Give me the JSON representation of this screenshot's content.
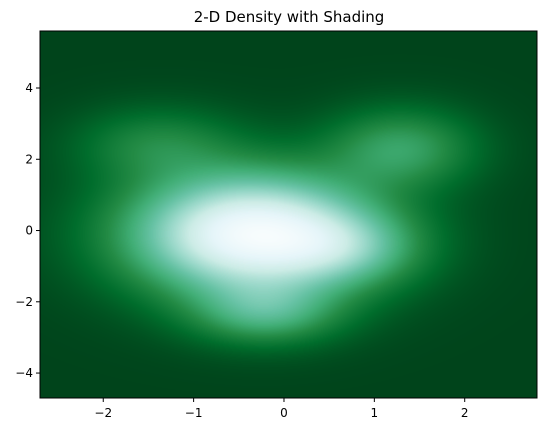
{
  "chart_data": {
    "type": "heatmap",
    "title": "2-D Density with Shading",
    "xlabel": "",
    "ylabel": "",
    "xlim": [
      -2.7,
      2.8
    ],
    "ylim": [
      -4.7,
      5.6
    ],
    "xticks": [
      -2,
      -1,
      0,
      1,
      2
    ],
    "yticks": [
      -4,
      -2,
      0,
      2,
      4
    ],
    "xtick_labels": [
      "−2",
      "−1",
      "0",
      "1",
      "2"
    ],
    "ytick_labels": [
      "−4",
      "−2",
      "0",
      "2",
      "4"
    ],
    "grid": false,
    "colormap": "BuGn_r",
    "colormap_stops": [
      "#00441b",
      "#006d2c",
      "#238b45",
      "#41ae76",
      "#66c2a4",
      "#99d8c9",
      "#ccece6",
      "#e5f5f9",
      "#f7fcfd"
    ],
    "density_components": [
      {
        "x": -0.35,
        "y": -0.1,
        "sx": 0.9,
        "sy": 1.15,
        "weight": 1.0
      },
      {
        "x": 1.3,
        "y": 2.3,
        "sx": 0.55,
        "sy": 0.75,
        "weight": 0.28
      },
      {
        "x": -1.4,
        "y": 2.4,
        "sx": 0.6,
        "sy": 0.7,
        "weight": 0.18
      },
      {
        "x": -0.2,
        "y": -2.3,
        "sx": 0.55,
        "sy": 0.6,
        "weight": 0.3
      },
      {
        "x": 0.7,
        "y": -0.5,
        "sx": 0.55,
        "sy": 0.7,
        "weight": 0.25
      }
    ]
  }
}
